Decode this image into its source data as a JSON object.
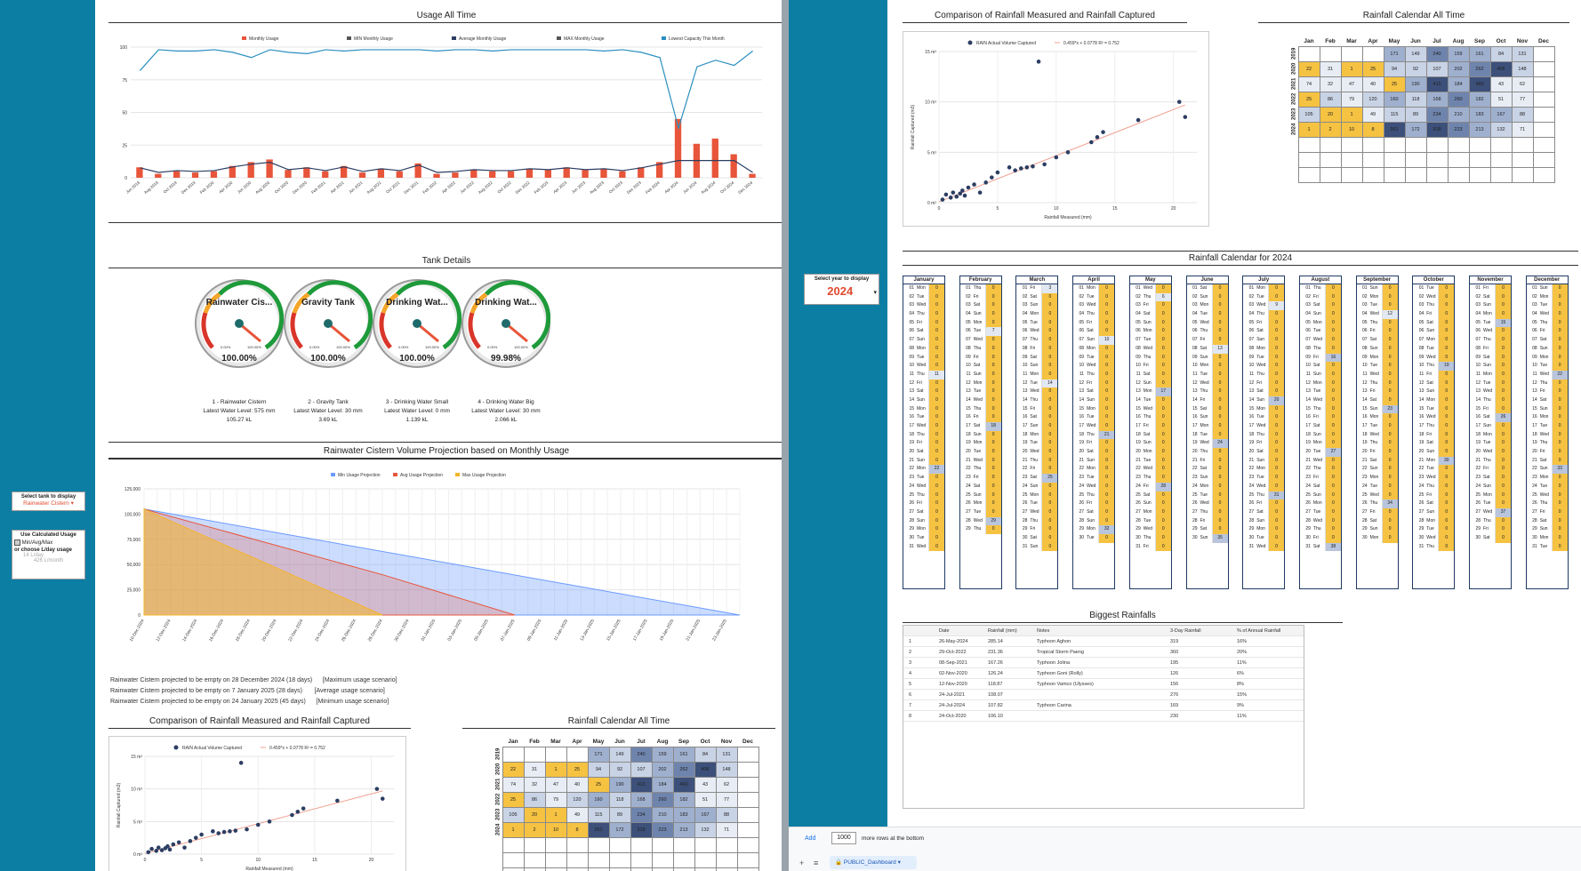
{
  "left_panel": {
    "usage_title": "Usage All Time",
    "usage_legend": [
      "Monthly Usage",
      "MIN Monthly Usage",
      "Average Monthly Usage",
      "MAX Monthly Usage",
      "Lowest Capacity This Month"
    ],
    "tank_title": "Tank Details",
    "gauges": [
      {
        "name": "Rainwater Cis...",
        "value": "100.00%",
        "label1": "1 - Rainwater Cistern",
        "label2": "Latest Water Level: 575 mm",
        "label3": "105.27 kL",
        "min": "0.00%",
        "max": "100.00%"
      },
      {
        "name": "Gravity Tank",
        "value": "100.00%",
        "label1": "2 - Gravity Tank",
        "label2": "Latest Water Level: 30 mm",
        "label3": "3.69 kL",
        "min": "0.00%",
        "max": "100.00%"
      },
      {
        "name": "Drinking Wat...",
        "value": "100.00%",
        "label1": "3 - Drinking Water Small",
        "label2": "Latest Water Level: 0 mm",
        "label3": "1.139 kL",
        "min": "0.00%",
        "max": "100.00%"
      },
      {
        "name": "Drinking Wat...",
        "value": "99.98%",
        "label1": "4 - Drinking Water Big",
        "label2": "Latest Water Level: 30 mm",
        "label3": "2.066 kL",
        "min": "0.00%",
        "max": "100.00%"
      }
    ],
    "projection_title": "Rainwater Cistern Volume Projection based on Monthly Usage",
    "projection_legend": [
      "Min Usage Projection",
      "Avg Usage Projection",
      "Max Usage Projection"
    ],
    "projection_notes": [
      "Rainwater Cistern projected to be empty on 28 December 2024 (18 days)      [Maximum usage scenario]",
      "Rainwater Cistern projected to be empty on 7 January 2025 (28 days)       [Average usage scenario]",
      "Rainwater Cistern projected to be empty on 24 January 2025 (45 days)      [Minimum usage scenario]"
    ],
    "compare_title": "Comparison of Rainfall Measured and Rainfall Captured",
    "calendar_title": "Rainfall Calendar All Time"
  },
  "controls": {
    "tank_select_label": "Select tank to display",
    "tank_select_value": "Rainwater Cistern",
    "calc_title": "Use Calculated Usage",
    "calc_option": "Min/Avg/Max",
    "calc_or": "or choose L/day usage",
    "lday": "14 L/day",
    "lmonth": "426 L/month",
    "year_label": "Select year to display",
    "year_value": "2024"
  },
  "right_panel": {
    "compare_title": "Comparison of Rainfall Measured and Rainfall Captured",
    "compare_legend_series": "RAIN Actual Volume Captured",
    "compare_legend_trend": "0.459*x + 0.0778 R² = 0.752",
    "compare_xlabel": "Rainfall Measured (mm)",
    "compare_ylabel": "Rainfall Captured (m3)",
    "calendar_title": "Rainfall Calendar All Time",
    "calendar2024_title": "Rainfall Calendar for 2024",
    "biggest_title": "Biggest Rainfalls",
    "biggest_headers": [
      "Date",
      "Rainfall (mm)",
      "Notes",
      "3-Day Rainfall",
      "% of Annual Rainfall"
    ],
    "biggest_rows": [
      [
        "1",
        "26-May-2024",
        "285.14",
        "Typhoon Aghon",
        "319",
        "16%"
      ],
      [
        "2",
        "29-Oct-2022",
        "231.36",
        "Tropical Storm Paeng",
        "360",
        "20%"
      ],
      [
        "3",
        "08-Sep-2021",
        "167.26",
        "Typhoon Jolina",
        "195",
        "11%"
      ],
      [
        "4",
        "02-Nov-2020",
        "126.24",
        "Typhoon Goni (Rolly)",
        "126",
        "6%"
      ],
      [
        "5",
        "12-Nov-2020",
        "118.87",
        "Typhoon Vamco (Ulysses)",
        "156",
        "8%"
      ],
      [
        "6",
        "24-Jul-2021",
        "108.07",
        "",
        "276",
        "15%"
      ],
      [
        "7",
        "24-Jul-2024",
        "107.82",
        "Typhoon Carina",
        "169",
        "9%"
      ],
      [
        "8",
        "24-Oct-2020",
        "106.10",
        "",
        "230",
        "11%"
      ]
    ]
  },
  "heatmap": {
    "months": [
      "Jan",
      "Feb",
      "Mar",
      "Apr",
      "May",
      "Jun",
      "Jul",
      "Aug",
      "Sep",
      "Oct",
      "Nov",
      "Dec"
    ],
    "years": [
      "2019",
      "2020",
      "2021",
      "2022",
      "2023",
      "2024"
    ],
    "cells": [
      [
        "",
        "",
        "",
        "",
        "171",
        "149",
        "240",
        "159",
        "161",
        "84",
        "131",
        ""
      ],
      [
        "22",
        "31",
        "1",
        "25",
        "94",
        "92",
        "107",
        "202",
        "262",
        "406",
        "148",
        ""
      ],
      [
        "74",
        "32",
        "47",
        "40",
        "25",
        "190",
        "413",
        "184",
        "460",
        "43",
        "62",
        ""
      ],
      [
        "25",
        "86",
        "79",
        "120",
        "160",
        "118",
        "168",
        "260",
        "182",
        "51",
        "77",
        ""
      ],
      [
        "105",
        "20",
        "1",
        "49",
        "115",
        "89",
        "234",
        "210",
        "183",
        "167",
        "88",
        ""
      ],
      [
        "1",
        "2",
        "10",
        "8",
        "351",
        "172",
        "318",
        "223",
        "213",
        "132",
        "71",
        ""
      ]
    ]
  },
  "calendar2024": {
    "months": [
      "January",
      "February",
      "March",
      "April",
      "May",
      "June",
      "July",
      "August",
      "September",
      "October",
      "November",
      "December"
    ]
  },
  "bottom_bar": {
    "add_label": "Add",
    "rows_value": "1000",
    "rows_suffix": "more rows at the bottom",
    "sheet_tab": "PUBLIC_Dashboard"
  },
  "chart_data": [
    {
      "type": "bar",
      "title": "Usage All Time",
      "categories": [
        "Jun 2019",
        "Aug 2019",
        "Oct 2019",
        "Dec 2019",
        "Feb 2020",
        "Apr 2020",
        "Jun 2020",
        "Aug 2020",
        "Oct 2020",
        "Dec 2020",
        "Feb 2021",
        "Apr 2021",
        "Jun 2021",
        "Aug 2021",
        "Oct 2021",
        "Dec 2021",
        "Feb 2022",
        "Apr 2022",
        "Jun 2022",
        "Aug 2022",
        "Oct 2022",
        "Dec 2022",
        "Feb 2023",
        "Apr 2023",
        "Jun 2023",
        "Aug 2023",
        "Oct 2023",
        "Dec 2023",
        "Feb 2024",
        "Apr 2024",
        "Jun 2024",
        "Aug 2024",
        "Oct 2024",
        "Dec 2024"
      ],
      "series": [
        {
          "name": "Monthly Usage",
          "values": [
            8,
            3,
            5,
            4,
            5,
            9,
            12,
            14,
            6,
            8,
            5,
            9,
            4,
            7,
            5,
            11,
            3,
            4,
            6,
            5,
            5,
            7,
            6,
            8,
            6,
            7,
            5,
            8,
            12,
            45,
            26,
            30,
            18,
            3
          ]
        },
        {
          "name": "Lowest Capacity This Month",
          "values": [
            82,
            98,
            97,
            97,
            98,
            96,
            92,
            98,
            96,
            95,
            98,
            97,
            98,
            98,
            98,
            98,
            97,
            98,
            98,
            97,
            98,
            98,
            98,
            98,
            98,
            97,
            98,
            96,
            92,
            38,
            85,
            90,
            86,
            97
          ]
        }
      ],
      "ylim": [
        0,
        100
      ]
    },
    {
      "type": "area",
      "title": "Rainwater Cistern Volume Projection based on Monthly Usage",
      "x": [
        "10-Dec-2024",
        "12-Dec-2024",
        "14-Dec-2024",
        "16-Dec-2024",
        "18-Dec-2024",
        "20-Dec-2024",
        "22-Dec-2024",
        "24-Dec-2024",
        "26-Dec-2024",
        "28-Dec-2024",
        "30-Dec-2024",
        "01-Jan-2025",
        "03-Jan-2025",
        "05-Jan-2025",
        "07-Jan-2025",
        "09-Jan-2025",
        "11-Jan-2025",
        "13-Jan-2025",
        "15-Jan-2025",
        "17-Jan-2025",
        "19-Jan-2025",
        "21-Jan-2025",
        "23-Jan-2025"
      ],
      "series": [
        {
          "name": "Min Usage Projection",
          "points": [
            [
              0,
              105000
            ],
            [
              45,
              0
            ]
          ]
        },
        {
          "name": "Avg Usage Projection",
          "points": [
            [
              0,
              105000
            ],
            [
              18,
              40000
            ],
            [
              28,
              0
            ]
          ]
        },
        {
          "name": "Max Usage Projection",
          "points": [
            [
              0,
              105000
            ],
            [
              18,
              0
            ]
          ]
        }
      ],
      "ylim": [
        0,
        125000
      ]
    },
    {
      "type": "scatter",
      "title": "Comparison of Rainfall Measured and Rainfall Captured",
      "xlabel": "Rainfall Measured (mm)",
      "ylabel": "Rainfall Captured (m3)",
      "x": [
        0.3,
        0.6,
        1,
        1.2,
        1.5,
        1.8,
        2,
        2.2,
        2.5,
        3,
        3.5,
        4,
        4.5,
        5,
        6,
        6.5,
        7,
        7.5,
        8,
        8.5,
        9,
        10,
        11,
        13,
        13.5,
        14,
        17,
        20.5,
        21
      ],
      "y": [
        0.3,
        0.8,
        0.5,
        1,
        0.6,
        0.9,
        1.2,
        0.7,
        1.5,
        1.8,
        1,
        2,
        2.5,
        3,
        3.5,
        3.2,
        3.4,
        3.5,
        3.6,
        14,
        3.8,
        4.5,
        5,
        6,
        6.5,
        7,
        8.2,
        10,
        8.5
      ],
      "xlim": [
        0,
        22
      ],
      "ylim": [
        0,
        15
      ]
    }
  ]
}
